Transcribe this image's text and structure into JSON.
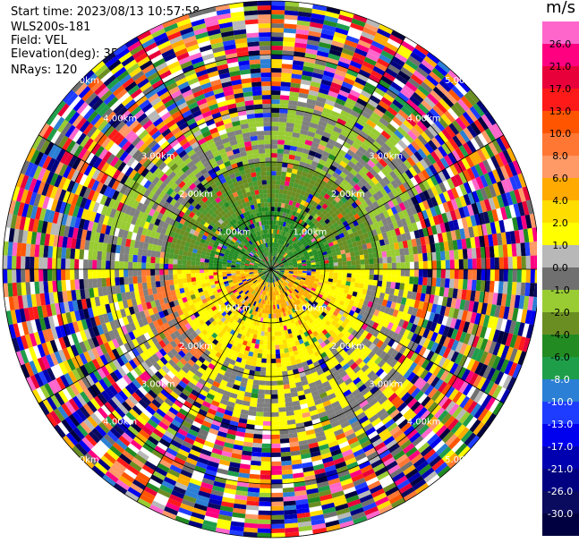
{
  "header": {
    "start_time": "Start time: 2023/08/13 10:57:58",
    "station": "WLS200s-181",
    "field": "Field: VEL",
    "elevation": "Elevation(deg): 35.30",
    "nrays": "NRays: 120"
  },
  "chart_data": {
    "type": "ppi",
    "field": "VEL",
    "units": "m/s",
    "ring_labels": [
      "1.00km",
      "2.00km",
      "3.00km",
      "4.00km",
      "5.00km"
    ],
    "spokes_deg": [
      0,
      30,
      60,
      90,
      120,
      150,
      180,
      210,
      240,
      270,
      300,
      330
    ],
    "colorbar": {
      "ticks": [
        "26.0",
        "21.0",
        "17.0",
        "13.0",
        "10.0",
        "8.0",
        "6.0",
        "4.0",
        "2.0",
        "1.0",
        "0.0",
        "-1.0",
        "-2.0",
        "-4.0",
        "-6.0",
        "-8.0",
        "-10.0",
        "-13.0",
        "-17.0",
        "-21.0",
        "-26.0",
        "-30.0"
      ],
      "colors": [
        "#ff66cc",
        "#ff0080",
        "#e8003a",
        "#ff1a1a",
        "#ff5500",
        "#ff7733",
        "#ff9966",
        "#ffaa00",
        "#ffdd00",
        "#ffff00",
        "#b8b8b8",
        "#707070",
        "#99cc33",
        "#6b8e23",
        "#228b22",
        "#1f9e4a",
        "#2b7fd4",
        "#1e3cff",
        "#0000ee",
        "#0000b0",
        "#000080",
        "#0a0a5e",
        "#000040"
      ]
    }
  }
}
